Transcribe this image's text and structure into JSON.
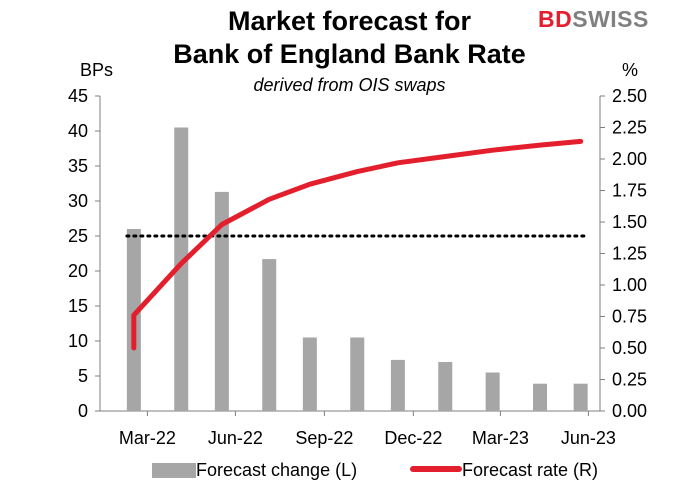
{
  "brand": {
    "part1": "BD",
    "part2": "SWISS",
    "color1": "#e41f2d",
    "color2": "#808080"
  },
  "chart_data": {
    "type": "bar+line",
    "title_line1": "Market forecast for",
    "title_line2": "Bank of England Bank Rate",
    "subtitle": "derived from OIS swaps",
    "left_axis_unit": "BPs",
    "right_axis_unit": "%",
    "ylim_left": [
      0,
      45
    ],
    "ylim_right": [
      0,
      2.5
    ],
    "left_ticks": [
      "0",
      "5",
      "10",
      "15",
      "20",
      "25",
      "30",
      "35",
      "40",
      "45"
    ],
    "right_ticks": [
      "0.00",
      "0.25",
      "0.50",
      "0.75",
      "1.00",
      "1.25",
      "1.50",
      "1.75",
      "2.00",
      "2.25",
      "2.50"
    ],
    "x_ticks": [
      "Mar-22",
      "Jun-22",
      "Sep-22",
      "Dec-22",
      "Mar-23",
      "Jun-23"
    ],
    "x_tick_dates": [
      "2022-03-31",
      "2022-06-30",
      "2022-09-30",
      "2022-12-31",
      "2023-03-31",
      "2023-06-30"
    ],
    "bars": {
      "name": "Forecast change (L)",
      "color": "#a6a6a6",
      "x": [
        "2022-03-17",
        "2022-05-05",
        "2022-06-16",
        "2022-08-04",
        "2022-09-15",
        "2022-11-03",
        "2022-12-15",
        "2023-02-02",
        "2023-03-23",
        "2023-05-11",
        "2023-06-22"
      ],
      "values": [
        26,
        40.5,
        31.3,
        21.7,
        10.5,
        10.5,
        7.3,
        7,
        5.5,
        3.9,
        3.9
      ]
    },
    "line": {
      "name": "Forecast rate (R)",
      "color": "#e41f2d",
      "x": [
        "2022-03-17",
        "2022-03-17",
        "2022-05-05",
        "2022-06-16",
        "2022-08-04",
        "2022-09-15",
        "2022-11-03",
        "2022-12-15",
        "2023-02-02",
        "2023-03-23",
        "2023-05-11",
        "2023-06-22"
      ],
      "values": [
        0.5,
        0.76,
        1.17,
        1.48,
        1.68,
        1.8,
        1.9,
        1.97,
        2.02,
        2.07,
        2.11,
        2.14
      ]
    },
    "reference_line": {
      "value_left_axis": 25,
      "style": "dotted",
      "color": "#000000"
    },
    "grid": false,
    "legend_position": "bottom"
  }
}
